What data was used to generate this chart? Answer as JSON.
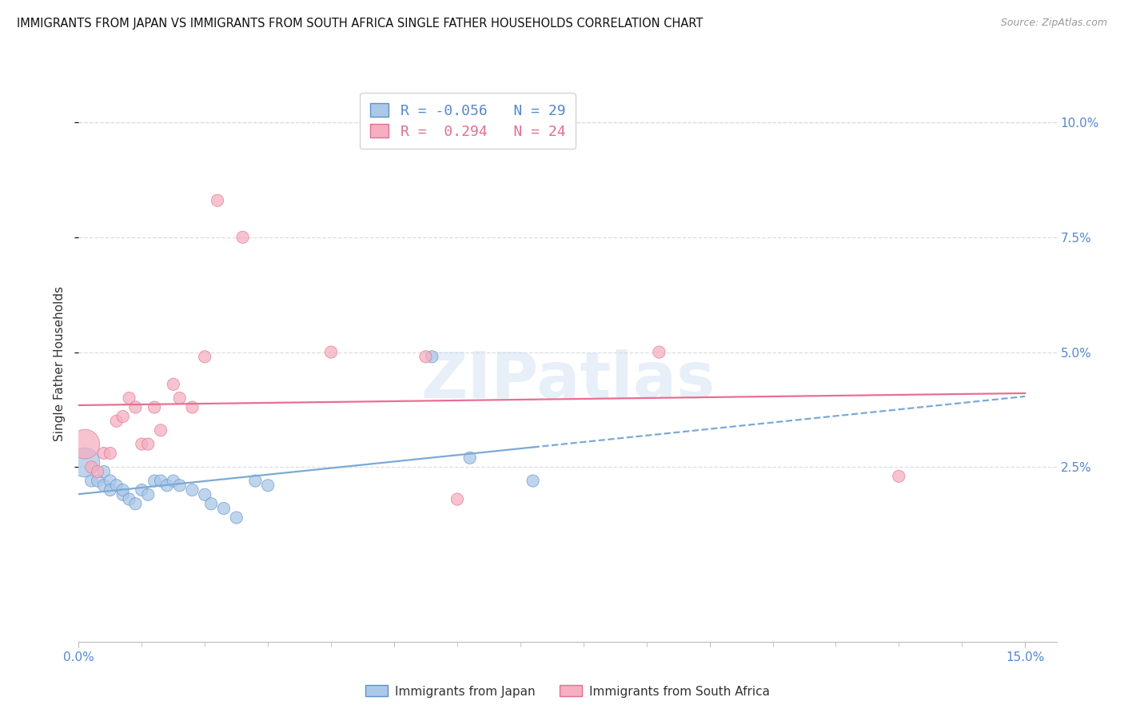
{
  "title": "IMMIGRANTS FROM JAPAN VS IMMIGRANTS FROM SOUTH AFRICA SINGLE FATHER HOUSEHOLDS CORRELATION CHART",
  "source": "Source: ZipAtlas.com",
  "ylabel": "Single Father Households",
  "xlim": [
    0.0,
    0.155
  ],
  "ylim": [
    -0.013,
    0.108
  ],
  "R_japan": -0.056,
  "N_japan": 29,
  "R_sa": 0.294,
  "N_sa": 24,
  "color_japan_fill": "#aac8e8",
  "color_japan_edge": "#6090c8",
  "color_sa_fill": "#f5afc0",
  "color_sa_edge": "#e07090",
  "color_japan_line": "#7aaad8",
  "color_sa_line": "#e87090",
  "watermark": "ZIPatlas",
  "legend1_label": "Immigrants from Japan",
  "legend2_label": "Immigrants from South Africa",
  "japan_x": [
    0.001,
    0.002,
    0.003,
    0.004,
    0.004,
    0.005,
    0.005,
    0.006,
    0.007,
    0.007,
    0.008,
    0.009,
    0.01,
    0.011,
    0.012,
    0.013,
    0.014,
    0.015,
    0.016,
    0.018,
    0.02,
    0.021,
    0.023,
    0.025,
    0.028,
    0.03,
    0.056,
    0.062,
    0.072
  ],
  "japan_y": [
    0.026,
    0.022,
    0.022,
    0.024,
    0.021,
    0.022,
    0.02,
    0.021,
    0.019,
    0.02,
    0.018,
    0.017,
    0.02,
    0.019,
    0.022,
    0.022,
    0.021,
    0.022,
    0.021,
    0.02,
    0.019,
    0.017,
    0.016,
    0.014,
    0.022,
    0.021,
    0.049,
    0.027,
    0.022
  ],
  "sa_x": [
    0.001,
    0.002,
    0.003,
    0.004,
    0.005,
    0.006,
    0.007,
    0.008,
    0.009,
    0.01,
    0.011,
    0.012,
    0.013,
    0.015,
    0.016,
    0.018,
    0.02,
    0.022,
    0.026,
    0.04,
    0.055,
    0.06,
    0.092,
    0.13
  ],
  "sa_y": [
    0.03,
    0.025,
    0.024,
    0.028,
    0.028,
    0.035,
    0.036,
    0.04,
    0.038,
    0.03,
    0.03,
    0.038,
    0.033,
    0.043,
    0.04,
    0.038,
    0.049,
    0.083,
    0.075,
    0.05,
    0.049,
    0.018,
    0.05,
    0.023
  ],
  "ytick_vals": [
    0.025,
    0.05,
    0.075,
    0.1
  ],
  "xtick_label_vals": [
    0.0,
    0.15
  ],
  "xtick_minor_vals": [
    0.01,
    0.02,
    0.03,
    0.04,
    0.05,
    0.06,
    0.07,
    0.08,
    0.09,
    0.1,
    0.11,
    0.12,
    0.13,
    0.14
  ]
}
